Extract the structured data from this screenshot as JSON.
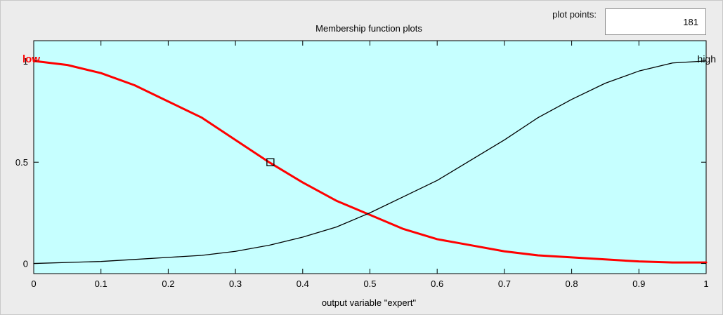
{
  "plot_points": {
    "label": "plot points:",
    "value": "181"
  },
  "colors": {
    "background": "#ececec",
    "plot_area": "#c6ffff",
    "selected_series": "#ff0000",
    "other_series": "#000000",
    "axis": "#000000"
  },
  "chart_data": {
    "type": "line",
    "title": "Membership function plots",
    "xlabel": "output variable \"expert\"",
    "ylabel": "",
    "xlim": [
      0,
      1
    ],
    "ylim": [
      -0.05,
      1.1
    ],
    "xticks": [
      "0",
      "0.1",
      "0.2",
      "0.3",
      "0.4",
      "0.5",
      "0.6",
      "0.7",
      "0.8",
      "0.9",
      "1"
    ],
    "yticks": [
      "0",
      "0.5",
      "1"
    ],
    "x": [
      0,
      0.05,
      0.1,
      0.15,
      0.2,
      0.25,
      0.3,
      0.35,
      0.4,
      0.45,
      0.5,
      0.55,
      0.6,
      0.65,
      0.7,
      0.75,
      0.8,
      0.85,
      0.9,
      0.95,
      1
    ],
    "series": [
      {
        "name": "low",
        "color": "#ff0000",
        "selected": true,
        "values": [
          1.0,
          0.98,
          0.94,
          0.88,
          0.8,
          0.72,
          0.61,
          0.5,
          0.4,
          0.31,
          0.24,
          0.17,
          0.12,
          0.09,
          0.06,
          0.04,
          0.03,
          0.02,
          0.01,
          0.005,
          0.005
        ]
      },
      {
        "name": "high",
        "color": "#000000",
        "selected": false,
        "values": [
          0.0,
          0.005,
          0.01,
          0.02,
          0.03,
          0.04,
          0.06,
          0.09,
          0.13,
          0.18,
          0.25,
          0.33,
          0.41,
          0.51,
          0.61,
          0.72,
          0.81,
          0.89,
          0.95,
          0.99,
          1.0
        ]
      }
    ],
    "marker": {
      "x": 0.352,
      "y": 0.5
    }
  }
}
